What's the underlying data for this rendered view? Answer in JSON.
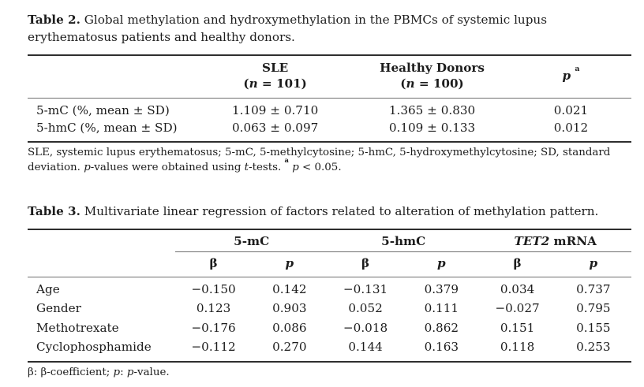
{
  "page": {
    "colors": {
      "text": "#1c1c1c",
      "heavy": "#2e2e2e",
      "light": "#6f6f6f",
      "bg": "#ffffff"
    }
  },
  "table2": {
    "caption_label": "Table 2.",
    "caption_text": " Global methylation and hydroxymethylation in the PBMCs of systemic lupus erythematosus patients and healthy donors.",
    "header": {
      "sle": "SLE",
      "sle_n": [
        {
          "t": "("
        },
        {
          "t": "n",
          "i": true
        },
        {
          "t": " = 101)"
        }
      ],
      "healthy": "Healthy Donors",
      "healthy_n": [
        {
          "t": "("
        },
        {
          "t": "n",
          "i": true
        },
        {
          "t": " = 100)"
        }
      ],
      "p": [
        {
          "t": "p",
          "i": true
        },
        {
          "t": " "
        },
        {
          "t": "a",
          "sup": true
        }
      ]
    },
    "rows": [
      {
        "label": "5-mC (%, mean ± SD)",
        "sle": "1.109 ± 0.710",
        "healthy": "1.365 ± 0.830",
        "p": "0.021"
      },
      {
        "label": "5-hmC (%, mean ± SD)",
        "sle": "0.063 ± 0.097",
        "healthy": "0.109 ± 0.133",
        "p": "0.012"
      }
    ],
    "footnote": [
      {
        "t": "SLE, systemic lupus erythematosus; 5-mC, 5-methylcytosine; 5-hmC, 5-hydroxymethylcytosine; SD, standard deviation. "
      },
      {
        "t": "p",
        "i": true
      },
      {
        "t": "-values were obtained using "
      },
      {
        "t": "t",
        "i": true
      },
      {
        "t": "-tests. "
      },
      {
        "t": "a",
        "sup": true,
        "b": true
      },
      {
        "t": " "
      },
      {
        "t": "p",
        "i": true
      },
      {
        "t": " < 0.05."
      }
    ]
  },
  "table3": {
    "caption_label": "Table 3.",
    "caption_text": " Multivariate linear regression of factors related to alteration of methylation pattern.",
    "groups": {
      "mc": "5-mC",
      "hmc": "5-hmC",
      "tet2": [
        {
          "t": "TET2",
          "i": true
        },
        {
          "t": " mRNA"
        }
      ]
    },
    "subheader": {
      "beta": "β",
      "p": "p"
    },
    "rows": [
      {
        "label": "Age",
        "values": [
          "−0.150",
          "0.142",
          "−0.131",
          "0.379",
          "0.034",
          "0.737"
        ]
      },
      {
        "label": "Gender",
        "values": [
          "0.123",
          "0.903",
          "0.052",
          "0.111",
          "−0.027",
          "0.795"
        ]
      },
      {
        "label": "Methotrexate",
        "values": [
          "−0.176",
          "0.086",
          "−0.018",
          "0.862",
          "0.151",
          "0.155"
        ]
      },
      {
        "label": "Cyclophosphamide",
        "values": [
          "−0.112",
          "0.270",
          "0.144",
          "0.163",
          "0.118",
          "0.253"
        ]
      }
    ],
    "footnote": [
      {
        "t": "β: β-coefficient; "
      },
      {
        "t": "p",
        "i": true
      },
      {
        "t": ": "
      },
      {
        "t": "p",
        "i": true
      },
      {
        "t": "-value."
      }
    ]
  }
}
